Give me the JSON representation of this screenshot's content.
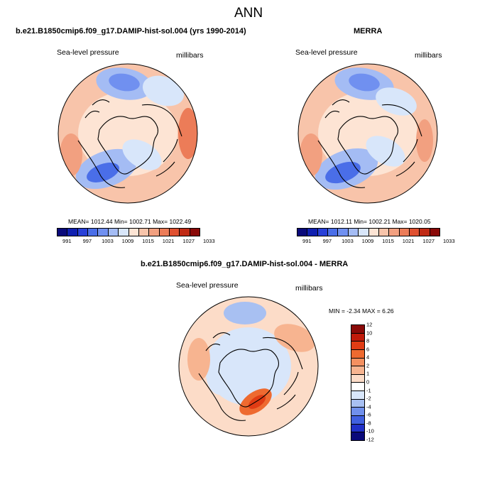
{
  "title": "ANN",
  "panels": [
    {
      "id": "model",
      "title": "b.e21.B1850cmip6.f09_g17.DAMIP-hist-sol.004 (yrs 1990-2014)",
      "left_label": "Sea-level pressure",
      "right_label": "millibars",
      "stats": "MEAN= 1012.44   Min= 1002.71   Max= 1022.49"
    },
    {
      "id": "obs",
      "title": "MERRA",
      "left_label": "Sea-level pressure",
      "right_label": "millibars",
      "stats": "MEAN= 1012.11   Min= 1002.21   Max= 1020.05"
    },
    {
      "id": "diff",
      "title": "b.e21.B1850cmip6.f09_g17.DAMIP-hist-sol.004 - MERRA",
      "left_label": "Sea-level pressure",
      "right_label": "millibars",
      "stats": "MIN =  -2.34  MAX =   6.26"
    }
  ],
  "abs_colorbar": {
    "colors": [
      "#0a0a7a",
      "#1020b0",
      "#2840d8",
      "#4a6ee8",
      "#7090f0",
      "#a4bcf4",
      "#d8e6fa",
      "#fde4d4",
      "#f8c4aa",
      "#f2a080",
      "#ec7c58",
      "#e05030",
      "#c02a14",
      "#8a0a08"
    ],
    "labels": [
      "991",
      "997",
      "1003",
      "1009",
      "1015",
      "1021",
      "1027",
      "1033"
    ]
  },
  "diff_colorbar": {
    "colors": [
      "#8a0a08",
      "#c01a0a",
      "#e03c14",
      "#ee6a30",
      "#f49060",
      "#f7b490",
      "#fcdcc8",
      "#ffffff",
      "#d8e6fa",
      "#a8c0f2",
      "#7090ec",
      "#4060e0",
      "#2030c8",
      "#0a0a7a"
    ],
    "labels": [
      "12",
      "10",
      "8",
      "6",
      "4",
      "2",
      "1",
      "0",
      "-1",
      "-2",
      "-4",
      "-6",
      "-8",
      "-10",
      "-12"
    ]
  }
}
